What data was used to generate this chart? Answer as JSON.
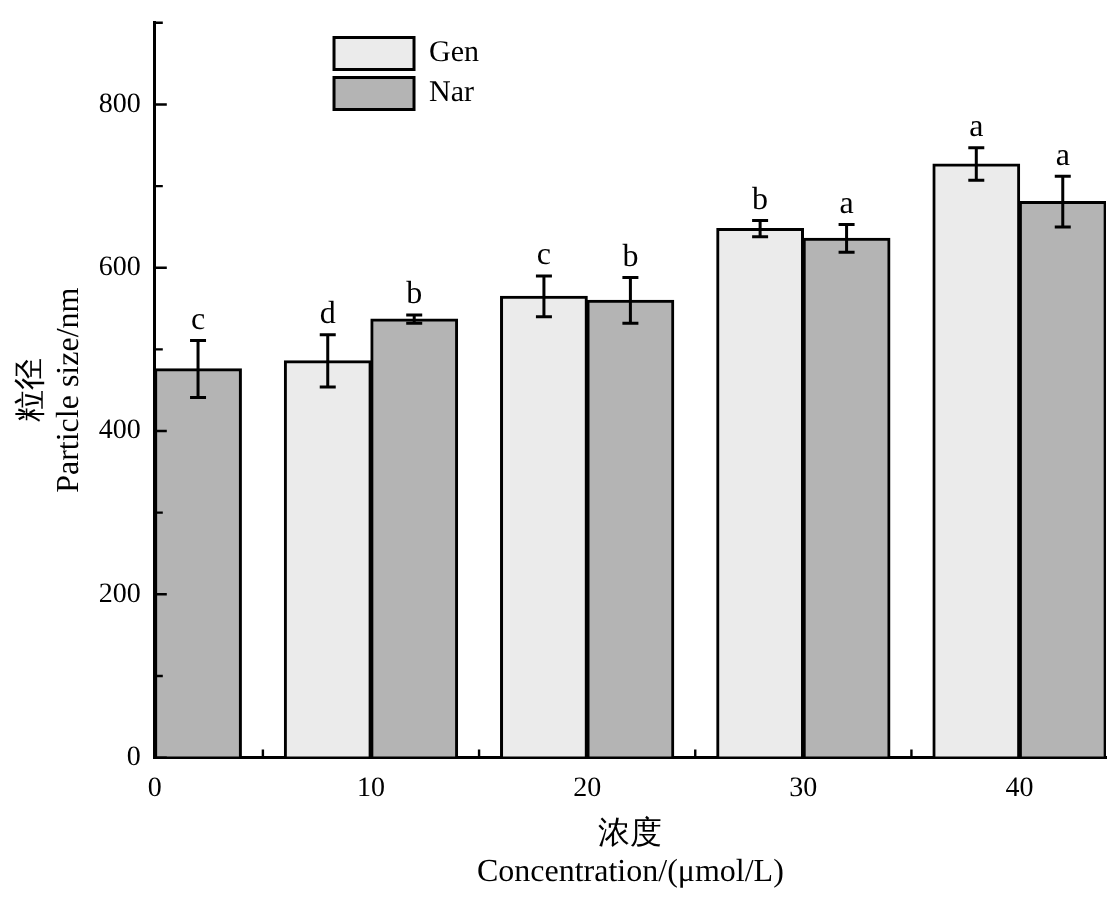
{
  "chart_data": {
    "type": "bar",
    "xlabel": "浓度\nConcentration/(μmol/L)",
    "ylabel": "粒径\nParticle size/nm",
    "xlim": [
      0,
      44
    ],
    "xticks": [
      0,
      {
        "value": 5,
        "label": null
      },
      10,
      {
        "value": 15,
        "label": null
      },
      20,
      {
        "value": 25,
        "label": null
      },
      30,
      {
        "value": 35,
        "label": null
      },
      40
    ],
    "ylim": [
      0,
      900
    ],
    "yticks": [
      0,
      {
        "value": 100,
        "label": null
      },
      200,
      {
        "value": 300,
        "label": null
      },
      400,
      {
        "value": 500,
        "label": null
      },
      600,
      {
        "value": 700,
        "label": null
      },
      800,
      {
        "value": 900,
        "label": null
      }
    ],
    "series": [
      {
        "name": "Gen",
        "color": "#ebebeb",
        "x": [
          8,
          18,
          28,
          38
        ],
        "values": [
          486,
          565,
          648,
          727
        ],
        "errors": [
          32,
          25,
          10,
          20
        ],
        "value_labels": [
          "d",
          "c",
          "b",
          "a"
        ]
      },
      {
        "name": "Nar",
        "color": "#b4b4b4",
        "x": [
          2,
          12,
          22,
          32,
          42
        ],
        "values": [
          476,
          537,
          560,
          636,
          681
        ],
        "errors": [
          35,
          5,
          28,
          17,
          31
        ],
        "value_labels": [
          "c",
          "b",
          "b",
          "a",
          "a"
        ]
      }
    ],
    "legend": "top left",
    "grid": false
  }
}
